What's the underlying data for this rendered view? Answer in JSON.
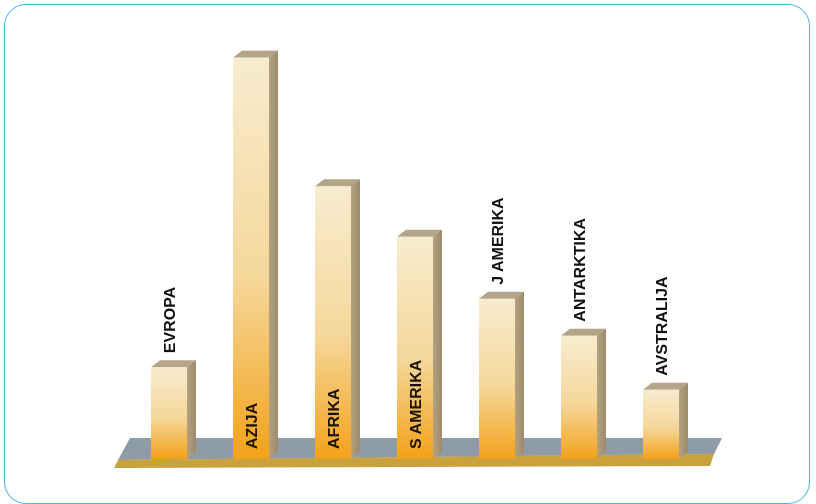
{
  "chart_data": {
    "type": "bar",
    "categories": [
      "EVROPA",
      "AZIJA",
      "AFRIKA",
      "S AMERIKA",
      "J AMERIKA",
      "ANTARKTIKA",
      "AVSTRALIJA"
    ],
    "values": [
      10.2,
      44.6,
      30.3,
      24.7,
      17.8,
      13.7,
      7.7
    ],
    "ylim": [
      0,
      46
    ],
    "label_inside": [
      false,
      true,
      true,
      true,
      false,
      false,
      false
    ],
    "grid": false,
    "legend": "none",
    "colors": {
      "bar_front_light": "#f7eccf",
      "bar_front_dark": "#f3a21a",
      "bar_side": "#9c8a6a",
      "bar_top": "#b4a488",
      "floor_top": "#8f9ba6",
      "floor_front": "#c9a23e",
      "frame": "#4bb8d9"
    }
  }
}
